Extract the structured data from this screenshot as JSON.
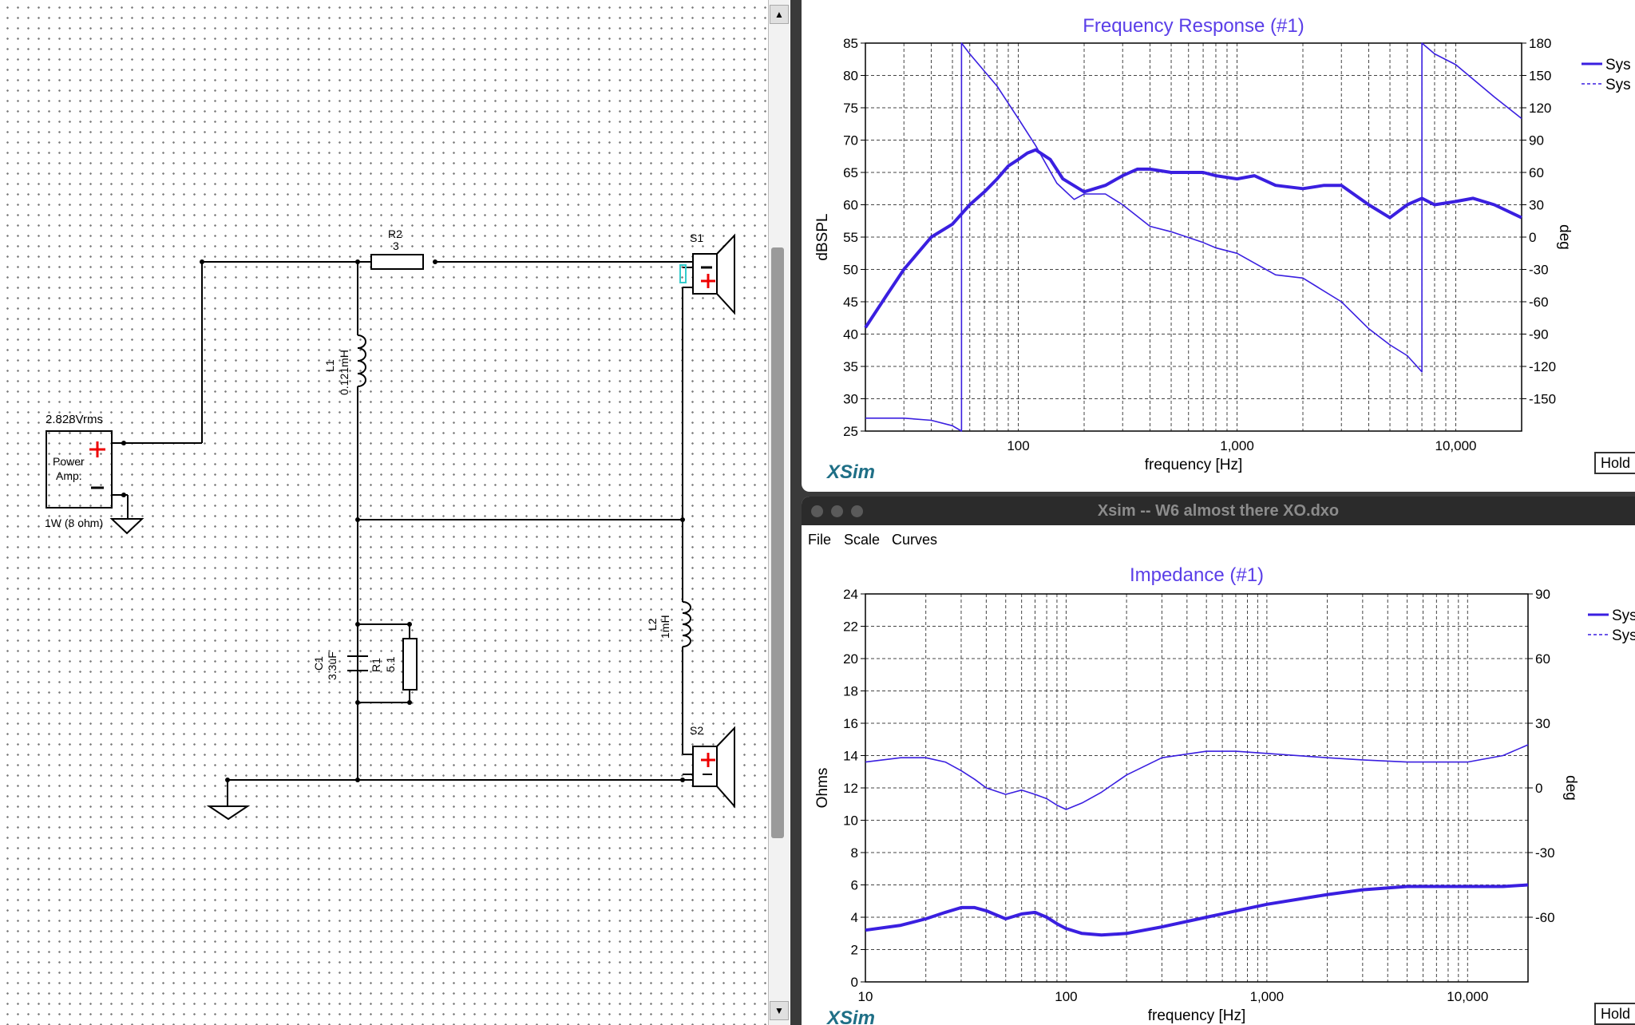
{
  "schematic": {
    "amp_voltage": "2.828Vrms",
    "amp_label_1": "Power",
    "amp_label_2": "Amp.",
    "amp_power": "1W (8 ohm)",
    "r2_name": "R2",
    "r2_value": "3",
    "l1_name": "L1",
    "l1_value": "0.121mH",
    "c1_name": "C1",
    "c1_value": "3.3uF",
    "r1_name": "R1",
    "r1_value": "5.1",
    "l2_name": "L2",
    "l2_value": "1mH",
    "s1_name": "S1",
    "s2_name": "S2"
  },
  "freq_window": {
    "title": "Frequency Response (#1)",
    "xlabel": "frequency [Hz]",
    "ylabel": "dBSPL",
    "y2label": "deg",
    "logo": "XSim",
    "hold_label": "Hold",
    "legend_1": "Sys",
    "legend_2": "Sys"
  },
  "imp_window": {
    "title_bar": "Xsim -- W6 almost there XO.dxo",
    "menu_file": "File",
    "menu_scale": "Scale",
    "menu_curves": "Curves",
    "title": "Impedance (#1)",
    "xlabel": "frequency [Hz]",
    "ylabel": "Ohms",
    "y2label": "deg",
    "logo": "XSim",
    "hold_label": "Hold",
    "legend_1": "Sys",
    "legend_2": "Sys"
  },
  "colors": {
    "curve": "#3a1fe0",
    "title": "#5a3ee8",
    "grid": "#444444"
  },
  "chart_data": [
    {
      "type": "line",
      "title": "Frequency Response (#1)",
      "xlabel": "frequency [Hz]",
      "ylabel": "dBSPL",
      "y2label": "deg",
      "xscale": "log",
      "xlim": [
        20,
        20000
      ],
      "ylim": [
        25,
        85
      ],
      "y2lim": [
        -180,
        180
      ],
      "x_ticks": [
        100,
        1000,
        10000
      ],
      "x_tick_labels": [
        "100",
        "1,000",
        "10,000"
      ],
      "y_ticks": [
        25,
        30,
        35,
        40,
        45,
        50,
        55,
        60,
        65,
        70,
        75,
        80,
        85
      ],
      "y2_ticks": [
        -150,
        -120,
        -90,
        -60,
        -30,
        0,
        30,
        60,
        90,
        120,
        150,
        180
      ],
      "grid": true,
      "legend": "top-right",
      "series": [
        {
          "name": "Sys",
          "axis": "left",
          "x": [
            20,
            25,
            30,
            40,
            50,
            60,
            70,
            80,
            90,
            100,
            110,
            120,
            140,
            160,
            200,
            250,
            300,
            350,
            400,
            500,
            600,
            700,
            800,
            1000,
            1200,
            1500,
            2000,
            2500,
            3000,
            4000,
            5000,
            6000,
            7000,
            8000,
            10000,
            12000,
            15000,
            20000
          ],
          "y": [
            41,
            46,
            50,
            55,
            57,
            60,
            62,
            64,
            66,
            67,
            68,
            68.5,
            67,
            64,
            62,
            63,
            64.5,
            65.5,
            65.5,
            65,
            65,
            65,
            64.5,
            64,
            64.5,
            63,
            62.5,
            63,
            63,
            60,
            58,
            60,
            61,
            60,
            60.5,
            61,
            60,
            58
          ]
        },
        {
          "name": "Sys",
          "axis": "right",
          "x": [
            20,
            30,
            40,
            50,
            55,
            55.01,
            60,
            80,
            100,
            120,
            150,
            180,
            200,
            250,
            300,
            400,
            500,
            700,
            800,
            1000,
            1500,
            2000,
            3000,
            4000,
            5000,
            6000,
            7000,
            7000.01,
            8000,
            10000,
            15000,
            20000
          ],
          "y": [
            -168,
            -168,
            -170,
            -175,
            -180,
            180,
            170,
            140,
            110,
            85,
            50,
            35,
            40,
            40,
            30,
            10,
            5,
            -5,
            -10,
            -15,
            -35,
            -38,
            -60,
            -85,
            -100,
            -110,
            -125,
            180,
            170,
            160,
            130,
            110
          ]
        }
      ]
    },
    {
      "type": "line",
      "title": "Impedance (#1)",
      "xlabel": "frequency [Hz]",
      "ylabel": "Ohms",
      "y2label": "deg",
      "xscale": "log",
      "xlim": [
        10,
        20000
      ],
      "ylim": [
        0,
        24
      ],
      "y2lim": [
        -90,
        90
      ],
      "x_ticks": [
        10,
        100,
        1000,
        10000
      ],
      "x_tick_labels": [
        "10",
        "100",
        "1,000",
        "10,000"
      ],
      "y_ticks": [
        0,
        2,
        4,
        6,
        8,
        10,
        12,
        14,
        16,
        18,
        20,
        22,
        24
      ],
      "y2_ticks": [
        -60,
        -30,
        0,
        30,
        60,
        90
      ],
      "grid": true,
      "legend": "top-right",
      "series": [
        {
          "name": "Sys",
          "axis": "left",
          "x": [
            10,
            15,
            20,
            25,
            30,
            35,
            40,
            50,
            60,
            70,
            80,
            90,
            100,
            120,
            150,
            200,
            300,
            500,
            1000,
            2000,
            3000,
            5000,
            10000,
            15000,
            20000
          ],
          "y": [
            3.2,
            3.5,
            3.9,
            4.3,
            4.6,
            4.6,
            4.4,
            3.9,
            4.2,
            4.3,
            4.0,
            3.6,
            3.3,
            3.0,
            2.9,
            3.0,
            3.4,
            4.0,
            4.8,
            5.4,
            5.7,
            5.9,
            5.9,
            5.9,
            6.0
          ]
        },
        {
          "name": "Sys",
          "axis": "right",
          "x": [
            10,
            15,
            20,
            25,
            30,
            35,
            40,
            50,
            60,
            70,
            80,
            90,
            100,
            120,
            150,
            200,
            300,
            500,
            700,
            1000,
            2000,
            3000,
            5000,
            7000,
            10000,
            15000,
            20000
          ],
          "y": [
            12,
            14,
            14,
            12,
            8,
            4,
            0,
            -3,
            -1,
            -3,
            -5,
            -8,
            -10,
            -7,
            -2,
            6,
            14,
            17,
            17,
            16,
            14,
            13,
            12,
            12,
            12,
            15,
            20
          ]
        }
      ]
    }
  ]
}
